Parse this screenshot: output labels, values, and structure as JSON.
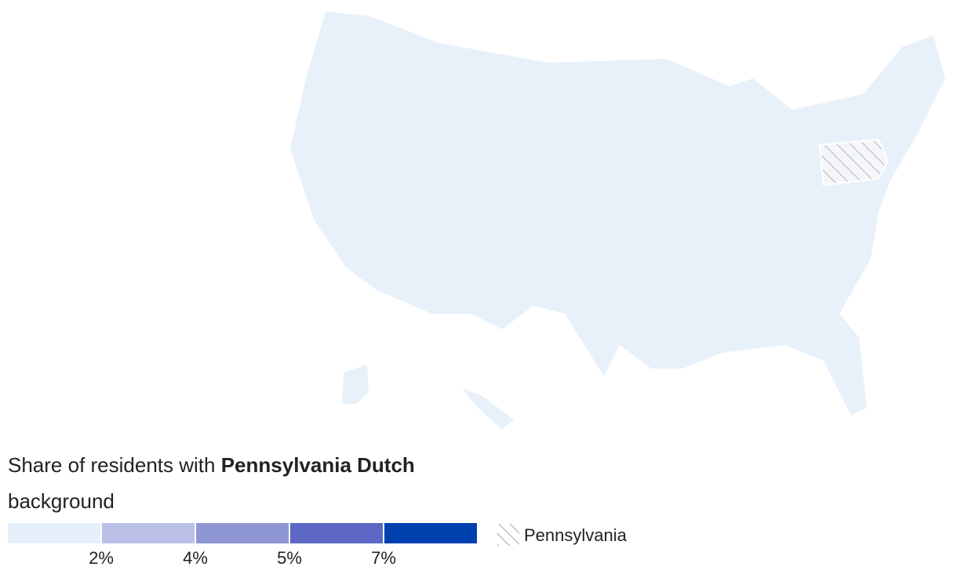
{
  "legend": {
    "title_parts": [
      "Share of residents with ",
      "Pennsylvania Dutch",
      " background"
    ],
    "colors": [
      "#e6f0fa",
      "#babfe8",
      "#8f96d6",
      "#5c68c4",
      "#0041b0"
    ],
    "ticks": [
      {
        "value": 2,
        "label": "2%"
      },
      {
        "value": 4,
        "label": "4%"
      },
      {
        "value": 5,
        "label": "5%"
      },
      {
        "value": 7,
        "label": "7%"
      }
    ],
    "hatch_label": "Pennsylvania"
  }
}
